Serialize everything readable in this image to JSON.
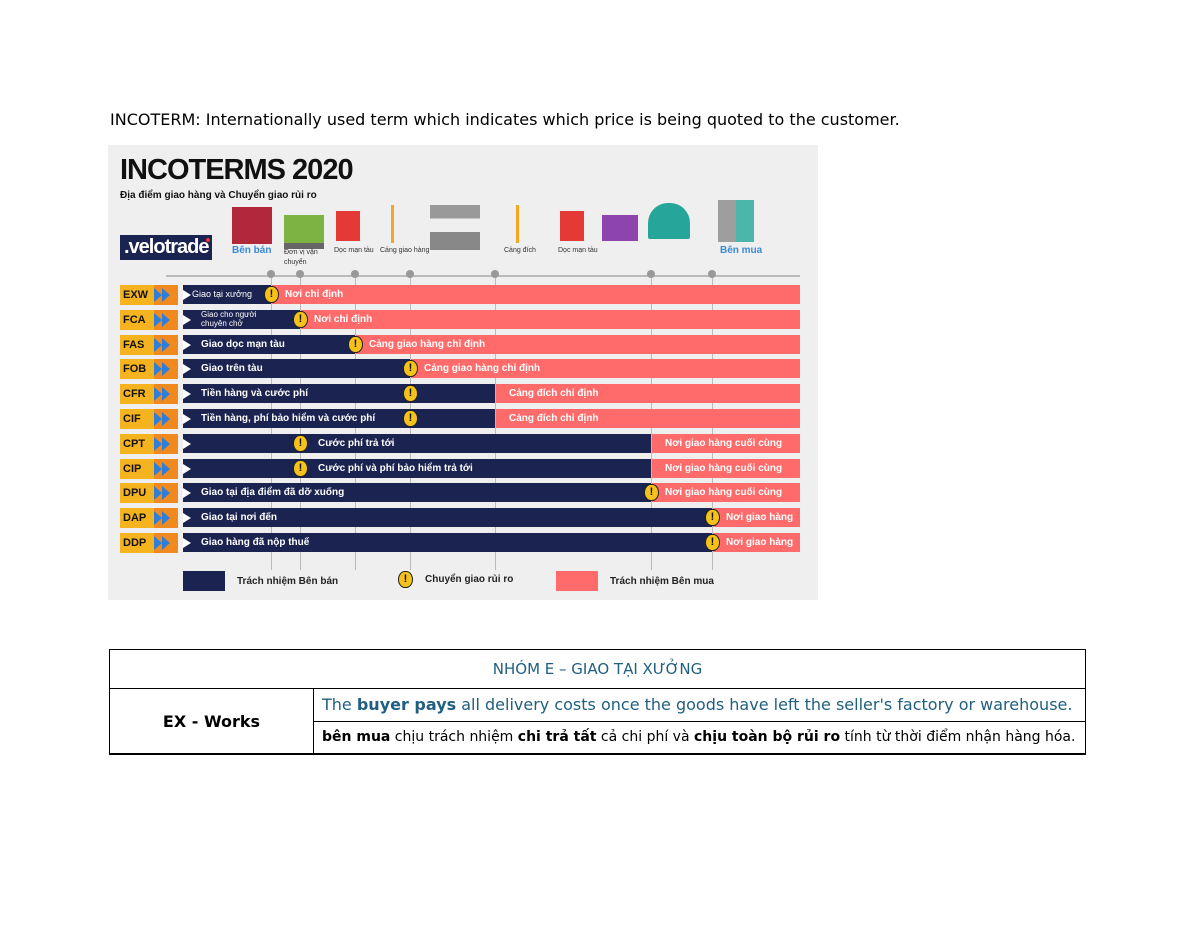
{
  "intro": "INCOTERM: Internationally used term which indicates which price is being quoted to the customer.",
  "infographic": {
    "title": "INCOTERMS 2020",
    "subtitle": "Địa điểm giao hàng và Chuyển giao rủi ro",
    "logo": ".velotrade",
    "seller": "Bên bán",
    "buyer": "Bên mua",
    "point_labels": [
      "Đơn vị vận chuyển",
      "Dọc mạn tàu",
      "Cảng giao hàng",
      "Cảng đích",
      "Dọc mạn tàu"
    ],
    "colors": {
      "seller": "#1b2450",
      "buyer": "#ff6b6b",
      "risk": "#f5c21c",
      "code": "#f5b320"
    },
    "rows": [
      {
        "code": "EXW",
        "seller_label": "Giao tại xưởng",
        "buyer_label": "Nơi chỉ định",
        "split": 0,
        "risk": 0
      },
      {
        "code": "FCA",
        "seller_label": "Giao cho người chuyên chở",
        "buyer_label": "Nơi chỉ định",
        "split": 1,
        "risk": 1
      },
      {
        "code": "FAS",
        "seller_label": "Giao dọc mạn tàu",
        "buyer_label": "Cảng giao hàng chỉ định",
        "split": 2,
        "risk": 2
      },
      {
        "code": "FOB",
        "seller_label": "Giao trên tàu",
        "buyer_label": "Cảng giao hàng chỉ định",
        "split": 3,
        "risk": 3
      },
      {
        "code": "CFR",
        "seller_label": "Tiền hàng và cước phí",
        "buyer_label": "Cảng đích chỉ định",
        "split": 4,
        "risk": 3
      },
      {
        "code": "CIF",
        "seller_label": "Tiền hàng, phí bảo hiểm và cước phí",
        "buyer_label": "Cảng đích chỉ định",
        "split": 4,
        "risk": 3
      },
      {
        "code": "CPT",
        "seller_label": "Cước phí trả tới",
        "buyer_label": "Nơi giao hàng cuối cùng",
        "split": 5,
        "risk": 1,
        "label_after_risk": true
      },
      {
        "code": "CIP",
        "seller_label": "Cước phí và phí bảo hiểm trả tới",
        "buyer_label": "Nơi giao hàng cuối cùng",
        "split": 5,
        "risk": 1,
        "label_after_risk": true
      },
      {
        "code": "DPU",
        "seller_label": "Giao tại địa điểm đã dỡ xuống",
        "buyer_label": "Nơi giao hàng cuối cùng",
        "split": 5,
        "risk": 5
      },
      {
        "code": "DAP",
        "seller_label": "Giao tại nơi đến",
        "buyer_label": "Nơi giao hàng",
        "split": 6,
        "risk": 6
      },
      {
        "code": "DDP",
        "seller_label": "Giao hàng đã nộp thuế",
        "buyer_label": "Nơi giao hàng",
        "split": 6,
        "risk": 6
      }
    ],
    "legend": {
      "seller": "Trách nhiệm Bên bán",
      "risk": "Chuyển giao rủi ro",
      "buyer": "Trách nhiệm Bên mua"
    }
  },
  "table": {
    "header": "NHÓM E – GIAO TẠI XƯỞNG",
    "term": "EX - Works",
    "en": {
      "pre": "The ",
      "bold": "buyer pays",
      "post": " all delivery costs once the goods have left the seller's factory or warehouse."
    },
    "vn": [
      {
        "t": "bên mua",
        "b": true
      },
      {
        "t": " chịu trách nhiệm ",
        "b": false
      },
      {
        "t": "chi trả tất",
        "b": true
      },
      {
        "t": " cả chi phí và ",
        "b": false
      },
      {
        "t": "chịu toàn bộ rủi ro",
        "b": true
      },
      {
        "t": " tính từ thời điểm nhận hàng hóa.",
        "b": false
      }
    ]
  }
}
